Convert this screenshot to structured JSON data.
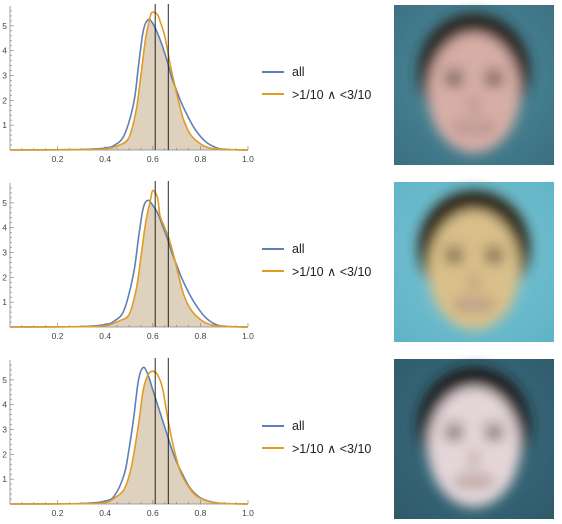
{
  "chart_data": [
    {
      "type": "area",
      "title": "",
      "xlabel": "",
      "ylabel": "",
      "xlim": [
        0,
        1.0
      ],
      "ylim": [
        0,
        5.8
      ],
      "xticks": [
        "0.2",
        "0.4",
        "0.6",
        "0.8",
        "1.0"
      ],
      "yticks": [
        "1",
        "2",
        "3",
        "4",
        "5"
      ],
      "vlines": [
        0.61,
        0.665
      ],
      "legend_position": "right",
      "series": [
        {
          "name": "all",
          "color": "#5e81b5",
          "x": [
            0.0,
            0.3,
            0.4,
            0.44,
            0.48,
            0.52,
            0.54,
            0.56,
            0.58,
            0.6,
            0.62,
            0.64,
            0.66,
            0.68,
            0.7,
            0.72,
            0.75,
            0.78,
            0.82,
            0.86,
            0.9,
            1.0
          ],
          "y": [
            0.0,
            0.02,
            0.08,
            0.2,
            0.6,
            1.9,
            3.4,
            4.8,
            5.25,
            5.1,
            4.7,
            4.2,
            3.6,
            2.9,
            2.4,
            1.9,
            1.3,
            0.8,
            0.35,
            0.12,
            0.03,
            0.0
          ]
        },
        {
          "name": ">1/10 ∧ <3/10",
          "color": "#e19c24",
          "x": [
            0.0,
            0.3,
            0.4,
            0.46,
            0.5,
            0.53,
            0.55,
            0.57,
            0.59,
            0.6,
            0.62,
            0.63,
            0.65,
            0.67,
            0.69,
            0.71,
            0.73,
            0.76,
            0.8,
            0.84,
            0.9,
            1.0
          ],
          "y": [
            0.0,
            0.01,
            0.04,
            0.2,
            0.5,
            1.6,
            3.0,
            4.5,
            5.4,
            5.55,
            5.45,
            5.2,
            4.6,
            3.6,
            2.7,
            1.9,
            1.2,
            0.6,
            0.25,
            0.08,
            0.02,
            0.0
          ]
        }
      ]
    },
    {
      "type": "area",
      "title": "",
      "xlabel": "",
      "ylabel": "",
      "xlim": [
        0,
        1.0
      ],
      "ylim": [
        0,
        5.8
      ],
      "xticks": [
        "0.2",
        "0.4",
        "0.6",
        "0.8",
        "1.0"
      ],
      "yticks": [
        "1",
        "2",
        "3",
        "4",
        "5"
      ],
      "vlines": [
        0.61,
        0.665
      ],
      "legend_position": "right",
      "series": [
        {
          "name": "all",
          "color": "#5e81b5",
          "x": [
            0.0,
            0.3,
            0.4,
            0.44,
            0.48,
            0.52,
            0.54,
            0.56,
            0.58,
            0.6,
            0.62,
            0.64,
            0.66,
            0.68,
            0.7,
            0.72,
            0.75,
            0.78,
            0.82,
            0.86,
            0.9,
            1.0
          ],
          "y": [
            0.0,
            0.02,
            0.1,
            0.25,
            0.7,
            2.2,
            3.6,
            4.8,
            5.1,
            4.9,
            4.6,
            4.1,
            3.6,
            3.0,
            2.5,
            2.0,
            1.4,
            0.9,
            0.4,
            0.12,
            0.03,
            0.0
          ]
        },
        {
          "name": ">1/10 ∧ <3/10",
          "color": "#e19c24",
          "x": [
            0.0,
            0.3,
            0.4,
            0.46,
            0.5,
            0.53,
            0.55,
            0.57,
            0.59,
            0.6,
            0.62,
            0.63,
            0.65,
            0.67,
            0.69,
            0.71,
            0.73,
            0.76,
            0.8,
            0.84,
            0.9,
            1.0
          ],
          "y": [
            0.0,
            0.01,
            0.05,
            0.25,
            0.5,
            1.5,
            2.8,
            4.2,
            5.1,
            5.5,
            5.2,
            4.5,
            4.0,
            3.5,
            2.8,
            2.0,
            1.3,
            0.7,
            0.3,
            0.1,
            0.02,
            0.0
          ]
        }
      ]
    },
    {
      "type": "area",
      "title": "",
      "xlabel": "",
      "ylabel": "",
      "xlim": [
        0,
        1.0
      ],
      "ylim": [
        0,
        5.8
      ],
      "xticks": [
        "0.2",
        "0.4",
        "0.6",
        "0.8",
        "1.0"
      ],
      "yticks": [
        "1",
        "2",
        "3",
        "4",
        "5"
      ],
      "vlines": [
        0.61,
        0.665
      ],
      "legend_position": "right",
      "series": [
        {
          "name": "all",
          "color": "#5e81b5",
          "x": [
            0.0,
            0.3,
            0.4,
            0.44,
            0.48,
            0.5,
            0.52,
            0.54,
            0.56,
            0.58,
            0.6,
            0.62,
            0.64,
            0.66,
            0.68,
            0.7,
            0.73,
            0.76,
            0.8,
            0.85,
            0.9,
            1.0
          ],
          "y": [
            0.0,
            0.02,
            0.12,
            0.35,
            1.2,
            2.2,
            3.5,
            5.0,
            5.5,
            5.2,
            4.6,
            4.0,
            3.4,
            2.8,
            2.2,
            1.7,
            1.1,
            0.6,
            0.25,
            0.08,
            0.02,
            0.0
          ]
        },
        {
          "name": ">1/10 ∧ <3/10",
          "color": "#e19c24",
          "x": [
            0.0,
            0.3,
            0.4,
            0.44,
            0.48,
            0.51,
            0.54,
            0.56,
            0.58,
            0.6,
            0.62,
            0.64,
            0.66,
            0.68,
            0.7,
            0.72,
            0.75,
            0.78,
            0.82,
            0.86,
            0.9,
            1.0
          ],
          "y": [
            0.0,
            0.01,
            0.06,
            0.25,
            0.6,
            1.5,
            3.2,
            4.6,
            5.2,
            5.35,
            5.2,
            4.7,
            3.6,
            2.6,
            1.8,
            1.2,
            0.7,
            0.35,
            0.15,
            0.05,
            0.02,
            0.0
          ]
        }
      ]
    }
  ],
  "faces": [
    {
      "skin": "#d6aea6",
      "hair": "#2a2624",
      "bg": "#4f8ea0",
      "bg_edge": "#3a6f80"
    },
    {
      "skin": "#d9c08a",
      "hair": "#2e2618",
      "bg": "#7ac6d6",
      "bg_edge": "#5fb2c6"
    },
    {
      "skin": "#e4d6d8",
      "hair": "#1c1c1e",
      "bg": "#3b6f80",
      "bg_edge": "#2f5a6a"
    }
  ]
}
